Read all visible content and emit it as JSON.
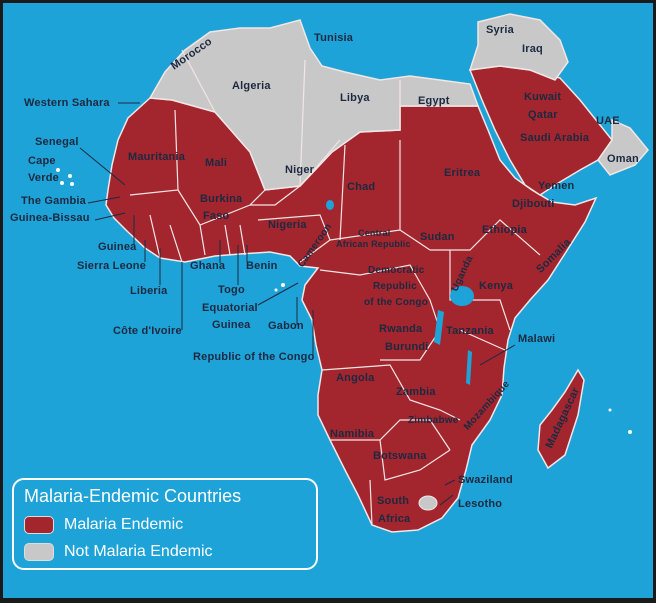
{
  "colors": {
    "ocean": "#1ea3d8",
    "endemic": "#a3262f",
    "not_endemic": "#c8c8c8",
    "border": "#f2e6e6",
    "label": "#1c2940"
  },
  "legend": {
    "title": "Malaria-Endemic Countries",
    "items": [
      {
        "label": "Malaria Endemic",
        "color": "#a3262f"
      },
      {
        "label": "Not Malaria Endemic",
        "color": "#c8c8c8"
      }
    ]
  },
  "countries": {
    "tunisia": "Tunisia",
    "syria": "Syria",
    "iraq": "Iraq",
    "morocco": "Morocco",
    "algeria": "Algeria",
    "libya": "Libya",
    "egypt": "Egypt",
    "kuwait": "Kuwait",
    "qatar": "Qatar",
    "uae": "UAE",
    "saudi_arabia": "Saudi Arabia",
    "oman": "Oman",
    "western_sahara": "Western Sahara",
    "senegal": "Senegal",
    "cape_verde_1": "Cape",
    "cape_verde_2": "Verde",
    "the_gambia": "The Gambia",
    "guinea_bissau": "Guinea-Bissau",
    "mauritania": "Mauritania",
    "mali": "Mali",
    "niger": "Niger",
    "chad": "Chad",
    "sudan": "Sudan",
    "eritrea": "Eritrea",
    "yemen": "Yemen",
    "djibouti": "Djibouti",
    "ethiopia": "Ethiopia",
    "burkina_faso_1": "Burkina",
    "burkina_faso_2": "Faso",
    "nigeria": "Nigeria",
    "car_1": "Central",
    "car_2": "African Republic",
    "cameroon": "Cameroon",
    "somalia": "Somalia",
    "guinea": "Guinea",
    "sierra_leone": "Sierra Leone",
    "ghana": "Ghana",
    "benin": "Benin",
    "togo": "Togo",
    "liberia": "Liberia",
    "eq_guinea_1": "Equatorial",
    "eq_guinea_2": "Guinea",
    "gabon": "Gabon",
    "cote_divoire": "Côte d'Ivoire",
    "rep_congo": "Republic of the Congo",
    "drc_1": "Democratic",
    "drc_2": "Republic",
    "drc_3": "of the Congo",
    "uganda": "Uganda",
    "kenya": "Kenya",
    "rwanda": "Rwanda",
    "burundi": "Burundi",
    "tanzania": "Tanzania",
    "malawi": "Malawi",
    "angola": "Angola",
    "zambia": "Zambia",
    "zimbabwe": "Zimbabwe",
    "mozambique": "Mozambique",
    "madagascar": "Madagascar",
    "namibia": "Namibia",
    "botswana": "Botswana",
    "swaziland": "Swaziland",
    "south_africa_1": "South",
    "south_africa_2": "Africa",
    "lesotho": "Lesotho"
  }
}
